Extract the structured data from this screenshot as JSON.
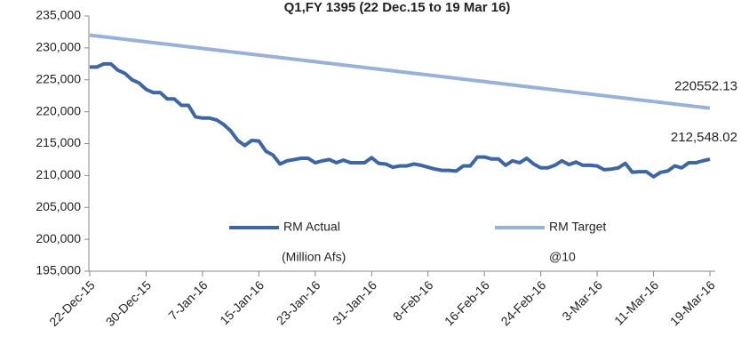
{
  "chart_data": {
    "type": "line",
    "title": "Q1,FY 1395 (22 Dec.15 to 19 Mar 16)",
    "categories": [
      "22-Dec-15",
      null,
      null,
      null,
      null,
      null,
      null,
      null,
      "30-Dec-15",
      null,
      null,
      null,
      null,
      null,
      null,
      null,
      "7-Jan-16",
      null,
      null,
      null,
      null,
      null,
      null,
      null,
      "15-Jan-16",
      null,
      null,
      null,
      null,
      null,
      null,
      null,
      "23-Jan-16",
      null,
      null,
      null,
      null,
      null,
      null,
      null,
      "31-Jan-16",
      null,
      null,
      null,
      null,
      null,
      null,
      null,
      "8-Feb-16",
      null,
      null,
      null,
      null,
      null,
      null,
      null,
      "16-Feb-16",
      null,
      null,
      null,
      null,
      null,
      null,
      null,
      "24-Feb-16",
      null,
      null,
      null,
      null,
      null,
      null,
      null,
      "3-Mar-16",
      null,
      null,
      null,
      null,
      null,
      null,
      null,
      "11-Mar-16",
      null,
      null,
      null,
      null,
      null,
      null,
      null,
      "19-Mar-16"
    ],
    "series": [
      {
        "name": "RM Actual",
        "color": "#3e66a3",
        "values": [
          227000,
          227000,
          227500,
          227500,
          226500,
          226000,
          225000,
          224500,
          223500,
          223000,
          223000,
          222000,
          222000,
          221000,
          221000,
          219200,
          219000,
          219000,
          218700,
          218000,
          217000,
          215500,
          214700,
          215500,
          215400,
          213800,
          213200,
          211800,
          212300,
          212500,
          212700,
          212700,
          212000,
          212300,
          212500,
          212000,
          212400,
          212000,
          212000,
          212000,
          212800,
          211900,
          211800,
          211300,
          211500,
          211500,
          211800,
          211600,
          211300,
          211000,
          210800,
          210800,
          210700,
          211500,
          211500,
          212900,
          212900,
          212600,
          212600,
          211600,
          212300,
          212000,
          212700,
          211800,
          211200,
          211200,
          211600,
          212300,
          211700,
          212100,
          211600,
          211600,
          211500,
          210900,
          211000,
          211200,
          211900,
          210500,
          210600,
          210600,
          209800,
          210500,
          210700,
          211500,
          211200,
          212000,
          212000,
          212300,
          212548.02
        ],
        "value_labels": [
          null,
          null,
          null,
          null,
          null,
          null,
          null,
          null,
          null,
          null,
          null,
          null,
          null,
          null,
          null,
          null,
          null,
          null,
          null,
          null,
          null,
          null,
          null,
          null,
          null,
          null,
          null,
          null,
          null,
          null,
          null,
          null,
          null,
          null,
          null,
          null,
          null,
          null,
          null,
          null,
          null,
          null,
          null,
          null,
          null,
          null,
          null,
          null,
          null,
          null,
          null,
          null,
          null,
          null,
          null,
          null,
          null,
          null,
          null,
          null,
          null,
          null,
          null,
          null,
          null,
          null,
          null,
          null,
          null,
          null,
          null,
          null,
          null,
          null,
          null,
          null,
          null,
          null,
          null,
          null,
          null,
          null,
          null,
          null,
          null,
          null,
          null,
          null,
          "212,548.02"
        ]
      },
      {
        "name": "RM Target",
        "color": "#99b1d7",
        "values": [
          232000,
          231870,
          231740,
          231610,
          231480,
          231350,
          231219,
          231089,
          230959,
          230829,
          230699,
          230569,
          230439,
          230309,
          230179,
          230049,
          229919,
          229788,
          229658,
          229528,
          229398,
          229268,
          229138,
          229008,
          228878,
          228748,
          228618,
          228488,
          228357,
          228227,
          228097,
          227967,
          227837,
          227707,
          227577,
          227447,
          227317,
          227187,
          227057,
          226926,
          226796,
          226666,
          226536,
          226406,
          226276,
          226146,
          226016,
          225886,
          225756,
          225626,
          225496,
          225365,
          225235,
          225105,
          224975,
          224845,
          224715,
          224585,
          224455,
          224325,
          224195,
          224065,
          223934,
          223804,
          223674,
          223544,
          223414,
          223284,
          223154,
          223024,
          222894,
          222764,
          222634,
          222503,
          222373,
          222243,
          222113,
          221983,
          221853,
          221723,
          221593,
          221463,
          221333,
          221203,
          221072,
          220942,
          220812,
          220682,
          220552.13
        ]
      }
    ],
    "annotations": [
      "(Million Afs)",
      "@10"
    ],
    "ylim": [
      195000,
      235000
    ],
    "yticks": [
      {
        "value": 195000,
        "label": "195,000"
      },
      {
        "value": 200000,
        "label": "200,000"
      },
      {
        "value": 205000,
        "label": "205,000"
      },
      {
        "value": 210000,
        "label": "210,000"
      },
      {
        "value": 215000,
        "label": "215,000"
      },
      {
        "value": 220000,
        "label": "220,000"
      },
      {
        "value": 225000,
        "label": "225,000"
      },
      {
        "value": 230000,
        "label": "230,000"
      },
      {
        "value": 235000,
        "label": "235,000"
      }
    ],
    "grid": false
  }
}
